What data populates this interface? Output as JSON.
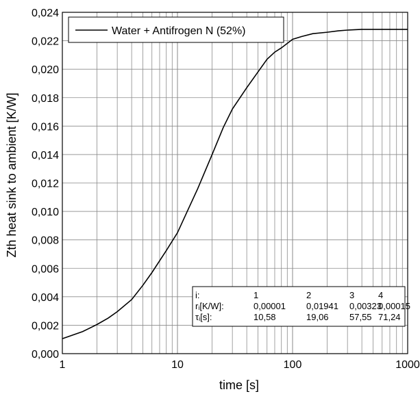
{
  "chart_data": {
    "type": "line",
    "xlabel": "time [s]",
    "ylabel": "Zth heat sink to ambient [K/W]",
    "x_scale": "log",
    "xlim": [
      1,
      1000
    ],
    "ylim": [
      0,
      0.024
    ],
    "grid": true,
    "legend_position": "top-left",
    "x_tick_labels": [
      "1",
      "10",
      "100",
      "1000"
    ],
    "y_tick_labels": [
      "0,000",
      "0,002",
      "0,004",
      "0,006",
      "0,008",
      "0,010",
      "0,012",
      "0,014",
      "0,016",
      "0,018",
      "0,020",
      "0,022",
      "0,024"
    ],
    "series": [
      {
        "name": "Water + Antifrogen N (52%)",
        "color": "#000000",
        "x": [
          1,
          1.5,
          2,
          2.5,
          3,
          4,
          5,
          6,
          8,
          10,
          12,
          15,
          20,
          25,
          30,
          40,
          50,
          60,
          70,
          80,
          100,
          120,
          150,
          200,
          250,
          300,
          400,
          500,
          700,
          1000
        ],
        "y": [
          0.00105,
          0.00155,
          0.00205,
          0.0025,
          0.00295,
          0.0038,
          0.0048,
          0.0057,
          0.00725,
          0.0085,
          0.0099,
          0.0116,
          0.014,
          0.0159,
          0.0172,
          0.0187,
          0.0198,
          0.0207,
          0.0212,
          0.0215,
          0.0221,
          0.0223,
          0.0225,
          0.0226,
          0.0227,
          0.02275,
          0.0228,
          0.0228,
          0.0228,
          0.0228
        ]
      }
    ],
    "parameter_table": {
      "row_labels": [
        "i:",
        "rᵢ[K/W]:",
        "τᵢ[s]:"
      ],
      "columns": [
        [
          "1",
          "0,00001",
          "10,58"
        ],
        [
          "2",
          "0,01941",
          "19,06"
        ],
        [
          "3",
          "0,00323",
          "57,55"
        ],
        [
          "4",
          "0,00015",
          "71,24"
        ]
      ]
    }
  }
}
